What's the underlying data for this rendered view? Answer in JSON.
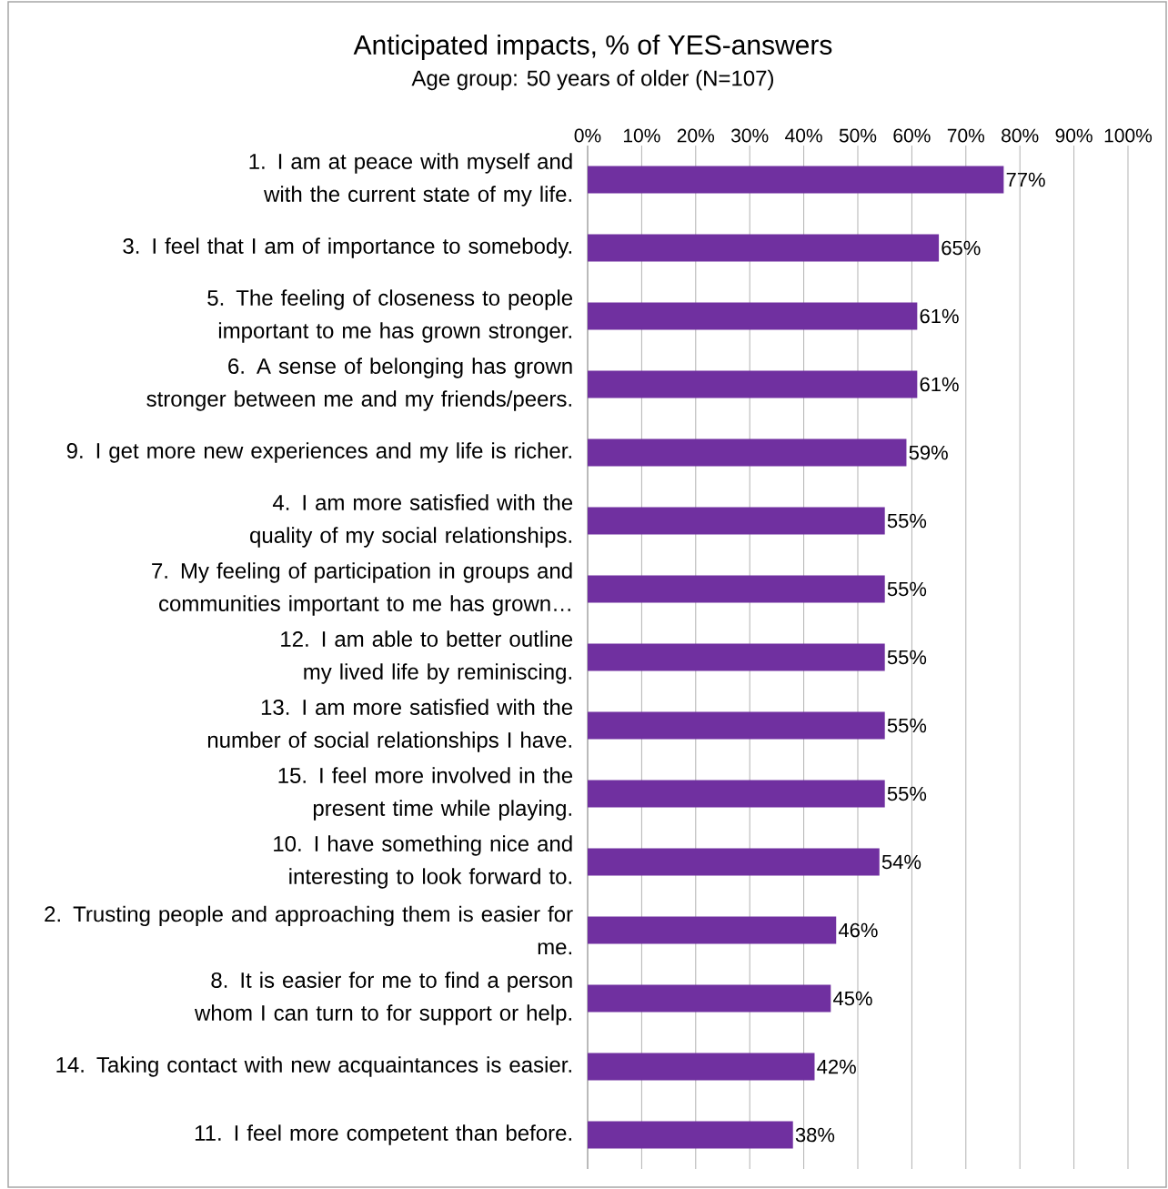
{
  "chart_data": {
    "type": "bar",
    "orientation": "horizontal",
    "title": "Anticipated impacts, % of YES-answers",
    "subtitle": "Age group: 50 years of older (N=107)",
    "categories": [
      "1. I am at peace with myself and with the current state of my life.",
      "3. I feel that I am of importance to somebody.",
      "5. The feeling of closeness to people important to me has grown stronger.",
      "6. A sense of belonging has grown stronger between me and my friends/peers.",
      "9. I get more new experiences and my life is richer.",
      "4. I am more satisfied with the quality of my social relationships.",
      "7. My feeling of participation in groups and communities important to me has grown…",
      "12. I am able to better outline my lived life by reminiscing.",
      "13. I am more satisfied with the number of social relationships I have.",
      "15. I feel more involved in the present time while playing.",
      "10. I have something nice and interesting to look forward to.",
      "2. Trusting  people and approaching them is easier for me.",
      "8. It is easier for me to find a person whom I can turn to for support or help.",
      "14. Taking contact with new acquaintances is easier.",
      "11. I feel more competent than before."
    ],
    "values": [
      77,
      65,
      61,
      61,
      59,
      55,
      55,
      55,
      55,
      55,
      54,
      46,
      45,
      42,
      38
    ],
    "value_labels": [
      "77%",
      "65%",
      "61%",
      "61%",
      "59%",
      "55%",
      "55%",
      "55%",
      "55%",
      "55%",
      "54%",
      "46%",
      "45%",
      "42%",
      "38%"
    ],
    "color": "#7030a0",
    "xlim": [
      0,
      100
    ],
    "xticks": [
      {
        "value": 0,
        "label": "0%"
      },
      {
        "value": 10,
        "label": "10%"
      },
      {
        "value": 20,
        "label": "20%"
      },
      {
        "value": 30,
        "label": "30%"
      },
      {
        "value": 40,
        "label": "40%"
      },
      {
        "value": 50,
        "label": "50%"
      },
      {
        "value": 60,
        "label": "60%"
      },
      {
        "value": 70,
        "label": "70%"
      },
      {
        "value": 80,
        "label": "80%"
      },
      {
        "value": 90,
        "label": "90%"
      },
      {
        "value": 100,
        "label": "100%"
      }
    ],
    "grid": "x"
  }
}
